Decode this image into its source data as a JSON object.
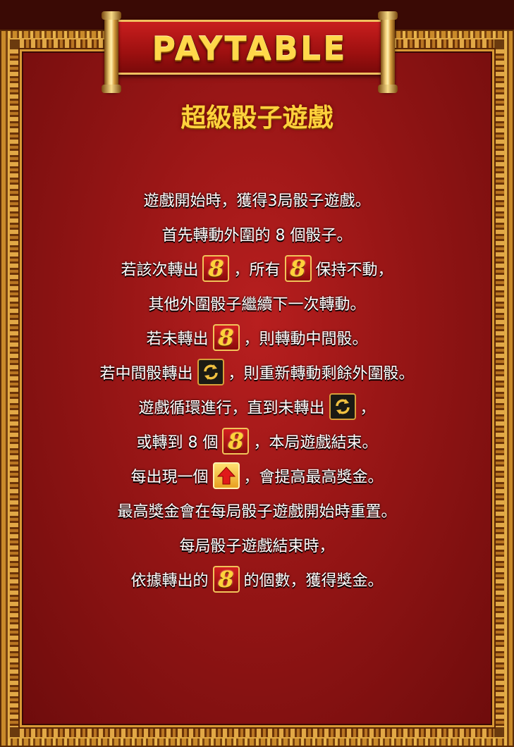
{
  "header": {
    "title": "PAYTABLE",
    "subtitle": "超級骰子遊戲"
  },
  "lines": {
    "l1": "遊戲開始時，獲得3局骰子遊戲。",
    "l2": "首先轉動外圍的 8 個骰子。",
    "l3a": "若該次轉出",
    "l3b": "，所有",
    "l3c": "保持不動，",
    "l4": "其他外圍骰子繼續下一次轉動。",
    "l5a": "若未轉出",
    "l5b": "，則轉動中間骰。",
    "l6a": "若中間骰轉出",
    "l6b": "，則重新轉動剩餘外圍骰。",
    "l7a": "遊戲循環進行，直到未轉出",
    "l7b": "，",
    "l8a": "或轉到 8 個",
    "l8b": "，本局遊戲結束。",
    "l9a": "每出現一個",
    "l9b": "，會提高最高獎金。",
    "l10": "最高獎金會在每局骰子遊戲開始時重置。",
    "l11": "每局骰子遊戲結束時，",
    "l12a": "依據轉出的",
    "l12b": "的個數，獲得獎金。"
  },
  "symbols": {
    "eight": "8",
    "respin_icon": "respin-arrows-icon",
    "up_icon": "up-arrow-icon"
  },
  "colors": {
    "background": "#9e1616",
    "gold": "#ffd23c",
    "text": "#ffffff"
  }
}
